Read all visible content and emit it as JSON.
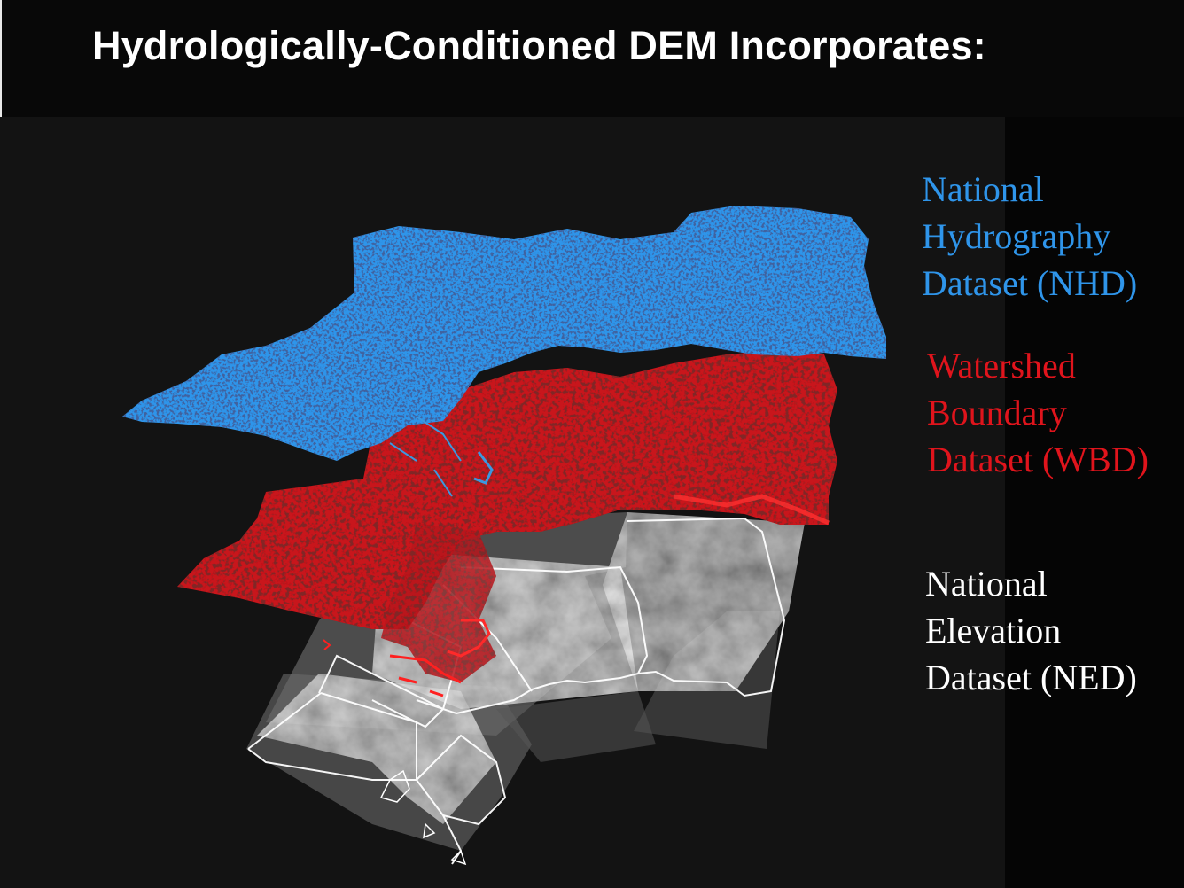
{
  "title": "Hydrologically-Conditioned DEM  Incorporates:",
  "layers": [
    {
      "id": "nhd",
      "lines": [
        "National",
        "Hydrography",
        "Dataset (NHD)"
      ],
      "color": "#2f95ea"
    },
    {
      "id": "wbd",
      "lines": [
        "Watershed",
        "Boundary",
        "Dataset (WBD)"
      ],
      "color": "#e0141c"
    },
    {
      "id": "ned",
      "lines": [
        "National",
        "Elevation",
        "Dataset (NED)"
      ],
      "color": "#ffffff"
    }
  ]
}
